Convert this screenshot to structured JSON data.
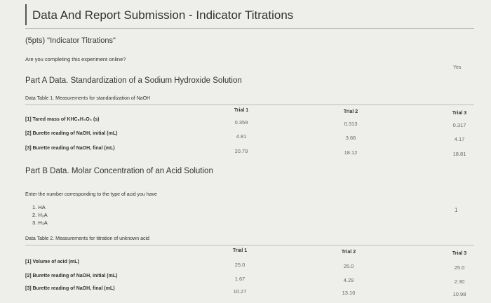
{
  "header": {
    "title": "Data And Report Submission - Indicator Titrations"
  },
  "question": {
    "points": "(5pts) \"Indicator Titrations\"",
    "prompt": "Are you completing this experiment online?",
    "answer": "Yes"
  },
  "part_a": {
    "title": "Part A Data. Standardization of a Sodium Hydroxide Solution",
    "table": {
      "caption": "Data Table 1. Measurements for standardization of NaOH",
      "columns": [
        "Trial 1",
        "Trial 2",
        "Trial 3"
      ],
      "rows": [
        {
          "label": "[1] Tared mass of KHC₈H₄O₄ (s)",
          "cells": [
            "0.359",
            "0.313",
            "0.317"
          ]
        },
        {
          "label": "[2] Burette reading of NaOH, initial (mL)",
          "cells": [
            "4.81",
            "3.66",
            "4.17"
          ]
        },
        {
          "label": "[3] Burette reading of NaOH, final (mL)",
          "cells": [
            "20.79",
            "18.12",
            "18.81"
          ]
        }
      ]
    }
  },
  "part_b": {
    "title": "Part B Data. Molar Concentration of an Acid Solution",
    "prompt": "Enter the number corresponding to the type of acid you have",
    "options": [
      "1. HA",
      "2. H₂A",
      "3. H₃A"
    ],
    "answer": "1",
    "table": {
      "caption": "Data Table 2. Measurements for titration of unknown acid",
      "columns": [
        "Trial 1",
        "Trial 2",
        "Trial 3"
      ],
      "rows": [
        {
          "label": "[1] Volume of acid (mL)",
          "cells": [
            "25.0",
            "25.0",
            "25.0"
          ]
        },
        {
          "label": "[2] Burette reading of NaOH, initial (mL)",
          "cells": [
            "1.67",
            "4.29",
            "2.30"
          ]
        },
        {
          "label": "[3] Burette reading of NaOH, final (mL)",
          "cells": [
            "10.27",
            "13.10",
            "10.98"
          ]
        }
      ]
    }
  }
}
